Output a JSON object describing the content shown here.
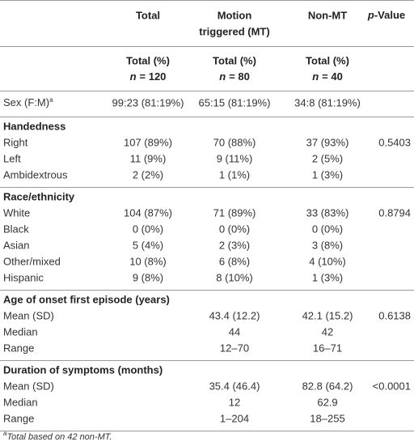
{
  "header": {
    "columns": [
      [
        "Total"
      ],
      [
        "Motion",
        "triggered (MT)"
      ],
      [
        "Non-MT"
      ]
    ],
    "p_value": {
      "italic": "p",
      "text": "-Value"
    },
    "subheader": [
      {
        "label": "Total (%)",
        "n_var": "n",
        "n_value": "= 120"
      },
      {
        "label": "Total (%)",
        "n_var": "n",
        "n_value": "= 80"
      },
      {
        "label": "Total (%)",
        "n_var": "n",
        "n_value": "= 40"
      }
    ]
  },
  "sex_row": {
    "label": "Sex (F:M)",
    "note_mark": "a",
    "cells": [
      "99:23 (81:19%)",
      "65:15 (81:19%)",
      "34:8 (81:19%)"
    ]
  },
  "sections": [
    {
      "title": "Handedness",
      "rows": [
        {
          "label": "Right",
          "total": "107 (89%)",
          "mt": "70 (88%)",
          "non_mt": "37 (93%)",
          "p": "0.5403"
        },
        {
          "label": "Left",
          "total": "11 (9%)",
          "mt": "9 (11%)",
          "non_mt": "2 (5%)"
        },
        {
          "label": "Ambidextrous",
          "total": "2 (2%)",
          "mt": "1 (1%)",
          "non_mt": "1 (3%)"
        }
      ]
    },
    {
      "title": "Race/ethnicity",
      "rows": [
        {
          "label": "White",
          "total": "104 (87%)",
          "mt": "71 (89%)",
          "non_mt": "33 (83%)",
          "p": "0.8794"
        },
        {
          "label": "Black",
          "total": "0 (0%)",
          "mt": "0 (0%)",
          "non_mt": "0 (0%)"
        },
        {
          "label": "Asian",
          "total": "5 (4%)",
          "mt": "2 (3%)",
          "non_mt": "3 (8%)"
        },
        {
          "label": "Other/mixed",
          "total": "10 (8%)",
          "mt": "6 (8%)",
          "non_mt": "4 (10%)"
        },
        {
          "label": "Hispanic",
          "total": "9 (8%)",
          "mt": "8 (10%)",
          "non_mt": "1 (3%)"
        }
      ]
    },
    {
      "title": "Age of onset first episode (years)",
      "rows": [
        {
          "label": "Mean (SD)",
          "mt": "43.4 (12.2)",
          "non_mt": "42.1 (15.2)",
          "p": "0.6138"
        },
        {
          "label": "Median",
          "mt": "44",
          "non_mt": "42"
        },
        {
          "label": "Range",
          "mt": "12–70",
          "non_mt": "16–71"
        }
      ]
    },
    {
      "title": "Duration of symptoms (months)",
      "rows": [
        {
          "label": "Mean (SD)",
          "mt": "35.4 (46.4)",
          "non_mt": "82.8 (64.2)",
          "p": "<0.0001"
        },
        {
          "label": "Median",
          "mt": "12",
          "non_mt": "62.9"
        },
        {
          "label": "Range",
          "mt": "1–204",
          "non_mt": "18–255"
        }
      ]
    }
  ],
  "footnote": {
    "mark": "a",
    "text": "Total based on 42 non-MT."
  }
}
